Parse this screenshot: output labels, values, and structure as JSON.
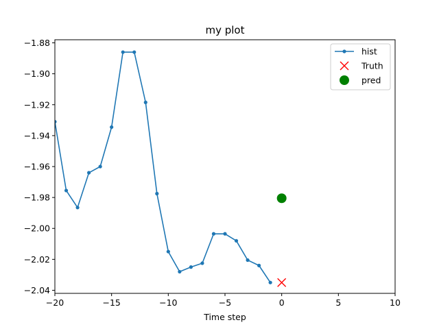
{
  "chart_data": {
    "type": "line",
    "title": "my plot",
    "xlabel": "Time step",
    "ylabel": "",
    "xlim": [
      -20,
      10
    ],
    "ylim": [
      -2.042,
      -1.878
    ],
    "xticks": [
      -20,
      -15,
      -10,
      -5,
      0,
      5,
      10
    ],
    "xtick_labels": [
      "−20",
      "−15",
      "−10",
      "−5",
      "0",
      "5",
      "10"
    ],
    "yticks": [
      -1.88,
      -1.9,
      -1.92,
      -1.94,
      -1.96,
      -1.98,
      -2.0,
      -2.02,
      -2.04
    ],
    "ytick_labels": [
      "−1.88",
      "−1.90",
      "−1.92",
      "−1.94",
      "−1.96",
      "−1.98",
      "−2.00",
      "−2.02",
      "−2.04"
    ],
    "grid": false,
    "legend_position": "top-right",
    "series": [
      {
        "name": "hist",
        "kind": "line-marker",
        "color": "#1f77b4",
        "x": [
          -20,
          -19,
          -18,
          -17,
          -16,
          -15,
          -14,
          -13,
          -12,
          -11,
          -10,
          -9,
          -8,
          -7,
          -6,
          -5,
          -4,
          -3,
          -2,
          -1
        ],
        "y": [
          -1.931,
          -1.9755,
          -1.9865,
          -1.964,
          -1.96,
          -1.9345,
          -1.886,
          -1.886,
          -1.9185,
          -1.9775,
          -2.015,
          -2.028,
          -2.025,
          -2.0225,
          -2.0035,
          -2.0035,
          -2.008,
          -2.0205,
          -2.024,
          -2.035
        ]
      },
      {
        "name": "Truth",
        "kind": "x-marker",
        "color": "#ff0000",
        "x": [
          0
        ],
        "y": [
          -2.035
        ]
      },
      {
        "name": "pred",
        "kind": "circle-marker",
        "color": "#008000",
        "x": [
          0
        ],
        "y": [
          -1.9805
        ]
      }
    ]
  }
}
